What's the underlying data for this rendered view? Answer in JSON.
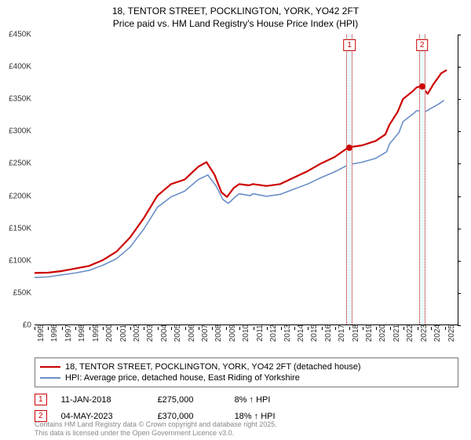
{
  "title": {
    "line1": "18, TENTOR STREET, POCKLINGTON, YORK, YO42 2FT",
    "line2": "Price paid vs. HM Land Registry's House Price Index (HPI)"
  },
  "chart": {
    "type": "line",
    "background_color": "#ffffff",
    "border_color": "#000000",
    "x": {
      "min": 1995,
      "max": 2026,
      "ticks": [
        1995,
        1996,
        1997,
        1998,
        1999,
        2000,
        2001,
        2002,
        2003,
        2004,
        2005,
        2006,
        2007,
        2008,
        2009,
        2010,
        2011,
        2012,
        2013,
        2014,
        2015,
        2016,
        2017,
        2018,
        2019,
        2020,
        2021,
        2022,
        2023,
        2024,
        2025
      ]
    },
    "y": {
      "min": 0,
      "max": 450000,
      "step": 50000,
      "ticks": [
        0,
        50000,
        100000,
        150000,
        200000,
        250000,
        300000,
        350000,
        400000,
        450000
      ],
      "labels": [
        "£0",
        "£50K",
        "£100K",
        "£150K",
        "£200K",
        "£250K",
        "£300K",
        "£350K",
        "£400K",
        "£450K"
      ]
    },
    "series": [
      {
        "key": "property",
        "label": "18, TENTOR STREET, POCKLINGTON, YORK, YO42 2FT (detached house)",
        "color": "#cc0000",
        "stroke_width": 2.2,
        "points": [
          [
            1995,
            80000
          ],
          [
            1996,
            80500
          ],
          [
            1997,
            83000
          ],
          [
            1998,
            87000
          ],
          [
            1999,
            91000
          ],
          [
            2000,
            100000
          ],
          [
            2001,
            113000
          ],
          [
            2002,
            135000
          ],
          [
            2003,
            165000
          ],
          [
            2004,
            200000
          ],
          [
            2005,
            218000
          ],
          [
            2006,
            225000
          ],
          [
            2007,
            245000
          ],
          [
            2007.6,
            252000
          ],
          [
            2008.2,
            232000
          ],
          [
            2008.7,
            205000
          ],
          [
            2009.1,
            198000
          ],
          [
            2009.6,
            212000
          ],
          [
            2010,
            218000
          ],
          [
            2010.7,
            216000
          ],
          [
            2011,
            218000
          ],
          [
            2012,
            215000
          ],
          [
            2013,
            218000
          ],
          [
            2014,
            228000
          ],
          [
            2015,
            238000
          ],
          [
            2016,
            250000
          ],
          [
            2017,
            260000
          ],
          [
            2018,
            275000
          ],
          [
            2019,
            278000
          ],
          [
            2020,
            285000
          ],
          [
            2020.7,
            295000
          ],
          [
            2021,
            310000
          ],
          [
            2021.6,
            330000
          ],
          [
            2022,
            350000
          ],
          [
            2022.7,
            362000
          ],
          [
            2023,
            368000
          ],
          [
            2023.35,
            370000
          ],
          [
            2023.8,
            358000
          ],
          [
            2024.2,
            372000
          ],
          [
            2024.8,
            390000
          ],
          [
            2025.2,
            395000
          ]
        ]
      },
      {
        "key": "hpi",
        "label": "HPI: Average price, detached house, East Riding of Yorkshire",
        "color": "#6a8fc7",
        "stroke_width": 1.6,
        "points": [
          [
            1995,
            73000
          ],
          [
            1996,
            74000
          ],
          [
            1997,
            77000
          ],
          [
            1998,
            80000
          ],
          [
            1999,
            84000
          ],
          [
            2000,
            92000
          ],
          [
            2001,
            102000
          ],
          [
            2002,
            120000
          ],
          [
            2003,
            148000
          ],
          [
            2004,
            182000
          ],
          [
            2005,
            198000
          ],
          [
            2006,
            207000
          ],
          [
            2007,
            225000
          ],
          [
            2007.7,
            232000
          ],
          [
            2008.3,
            215000
          ],
          [
            2008.8,
            194000
          ],
          [
            2009.2,
            188000
          ],
          [
            2009.7,
            198000
          ],
          [
            2010,
            203000
          ],
          [
            2010.8,
            200000
          ],
          [
            2011,
            203000
          ],
          [
            2012,
            199000
          ],
          [
            2013,
            202000
          ],
          [
            2014,
            210000
          ],
          [
            2015,
            218000
          ],
          [
            2016,
            228000
          ],
          [
            2017,
            237000
          ],
          [
            2018,
            248000
          ],
          [
            2019,
            252000
          ],
          [
            2020,
            258000
          ],
          [
            2020.8,
            268000
          ],
          [
            2021,
            280000
          ],
          [
            2021.7,
            298000
          ],
          [
            2022,
            315000
          ],
          [
            2022.8,
            328000
          ],
          [
            2023,
            332000
          ],
          [
            2023.6,
            330000
          ],
          [
            2024,
            335000
          ],
          [
            2024.6,
            342000
          ],
          [
            2025,
            348000
          ]
        ]
      }
    ],
    "markers": [
      {
        "id": "1",
        "x": 2018.03,
        "band_color": "#eafafe",
        "border_color": "#cc0000",
        "dot_y": 275000,
        "dot_color": "#cc0000"
      },
      {
        "id": "2",
        "x": 2023.34,
        "band_color": "#eafafe",
        "border_color": "#cc0000",
        "dot_y": 370000,
        "dot_color": "#cc0000"
      }
    ]
  },
  "legend": [
    {
      "color": "#cc0000",
      "label": "18, TENTOR STREET, POCKLINGTON, YORK, YO42 2FT (detached house)"
    },
    {
      "color": "#6a8fc7",
      "label": "HPI: Average price, detached house, East Riding of Yorkshire"
    }
  ],
  "sales": [
    {
      "tag": "1",
      "tag_color": "#cc0000",
      "date": "11-JAN-2018",
      "price": "£275,000",
      "pct": "8% ↑ HPI"
    },
    {
      "tag": "2",
      "tag_color": "#cc0000",
      "date": "04-MAY-2023",
      "price": "£370,000",
      "pct": "18% ↑ HPI"
    }
  ],
  "footer": {
    "line1": "Contains HM Land Registry data © Crown copyright and database right 2025.",
    "line2": "This data is licensed under the Open Government Licence v3.0."
  }
}
